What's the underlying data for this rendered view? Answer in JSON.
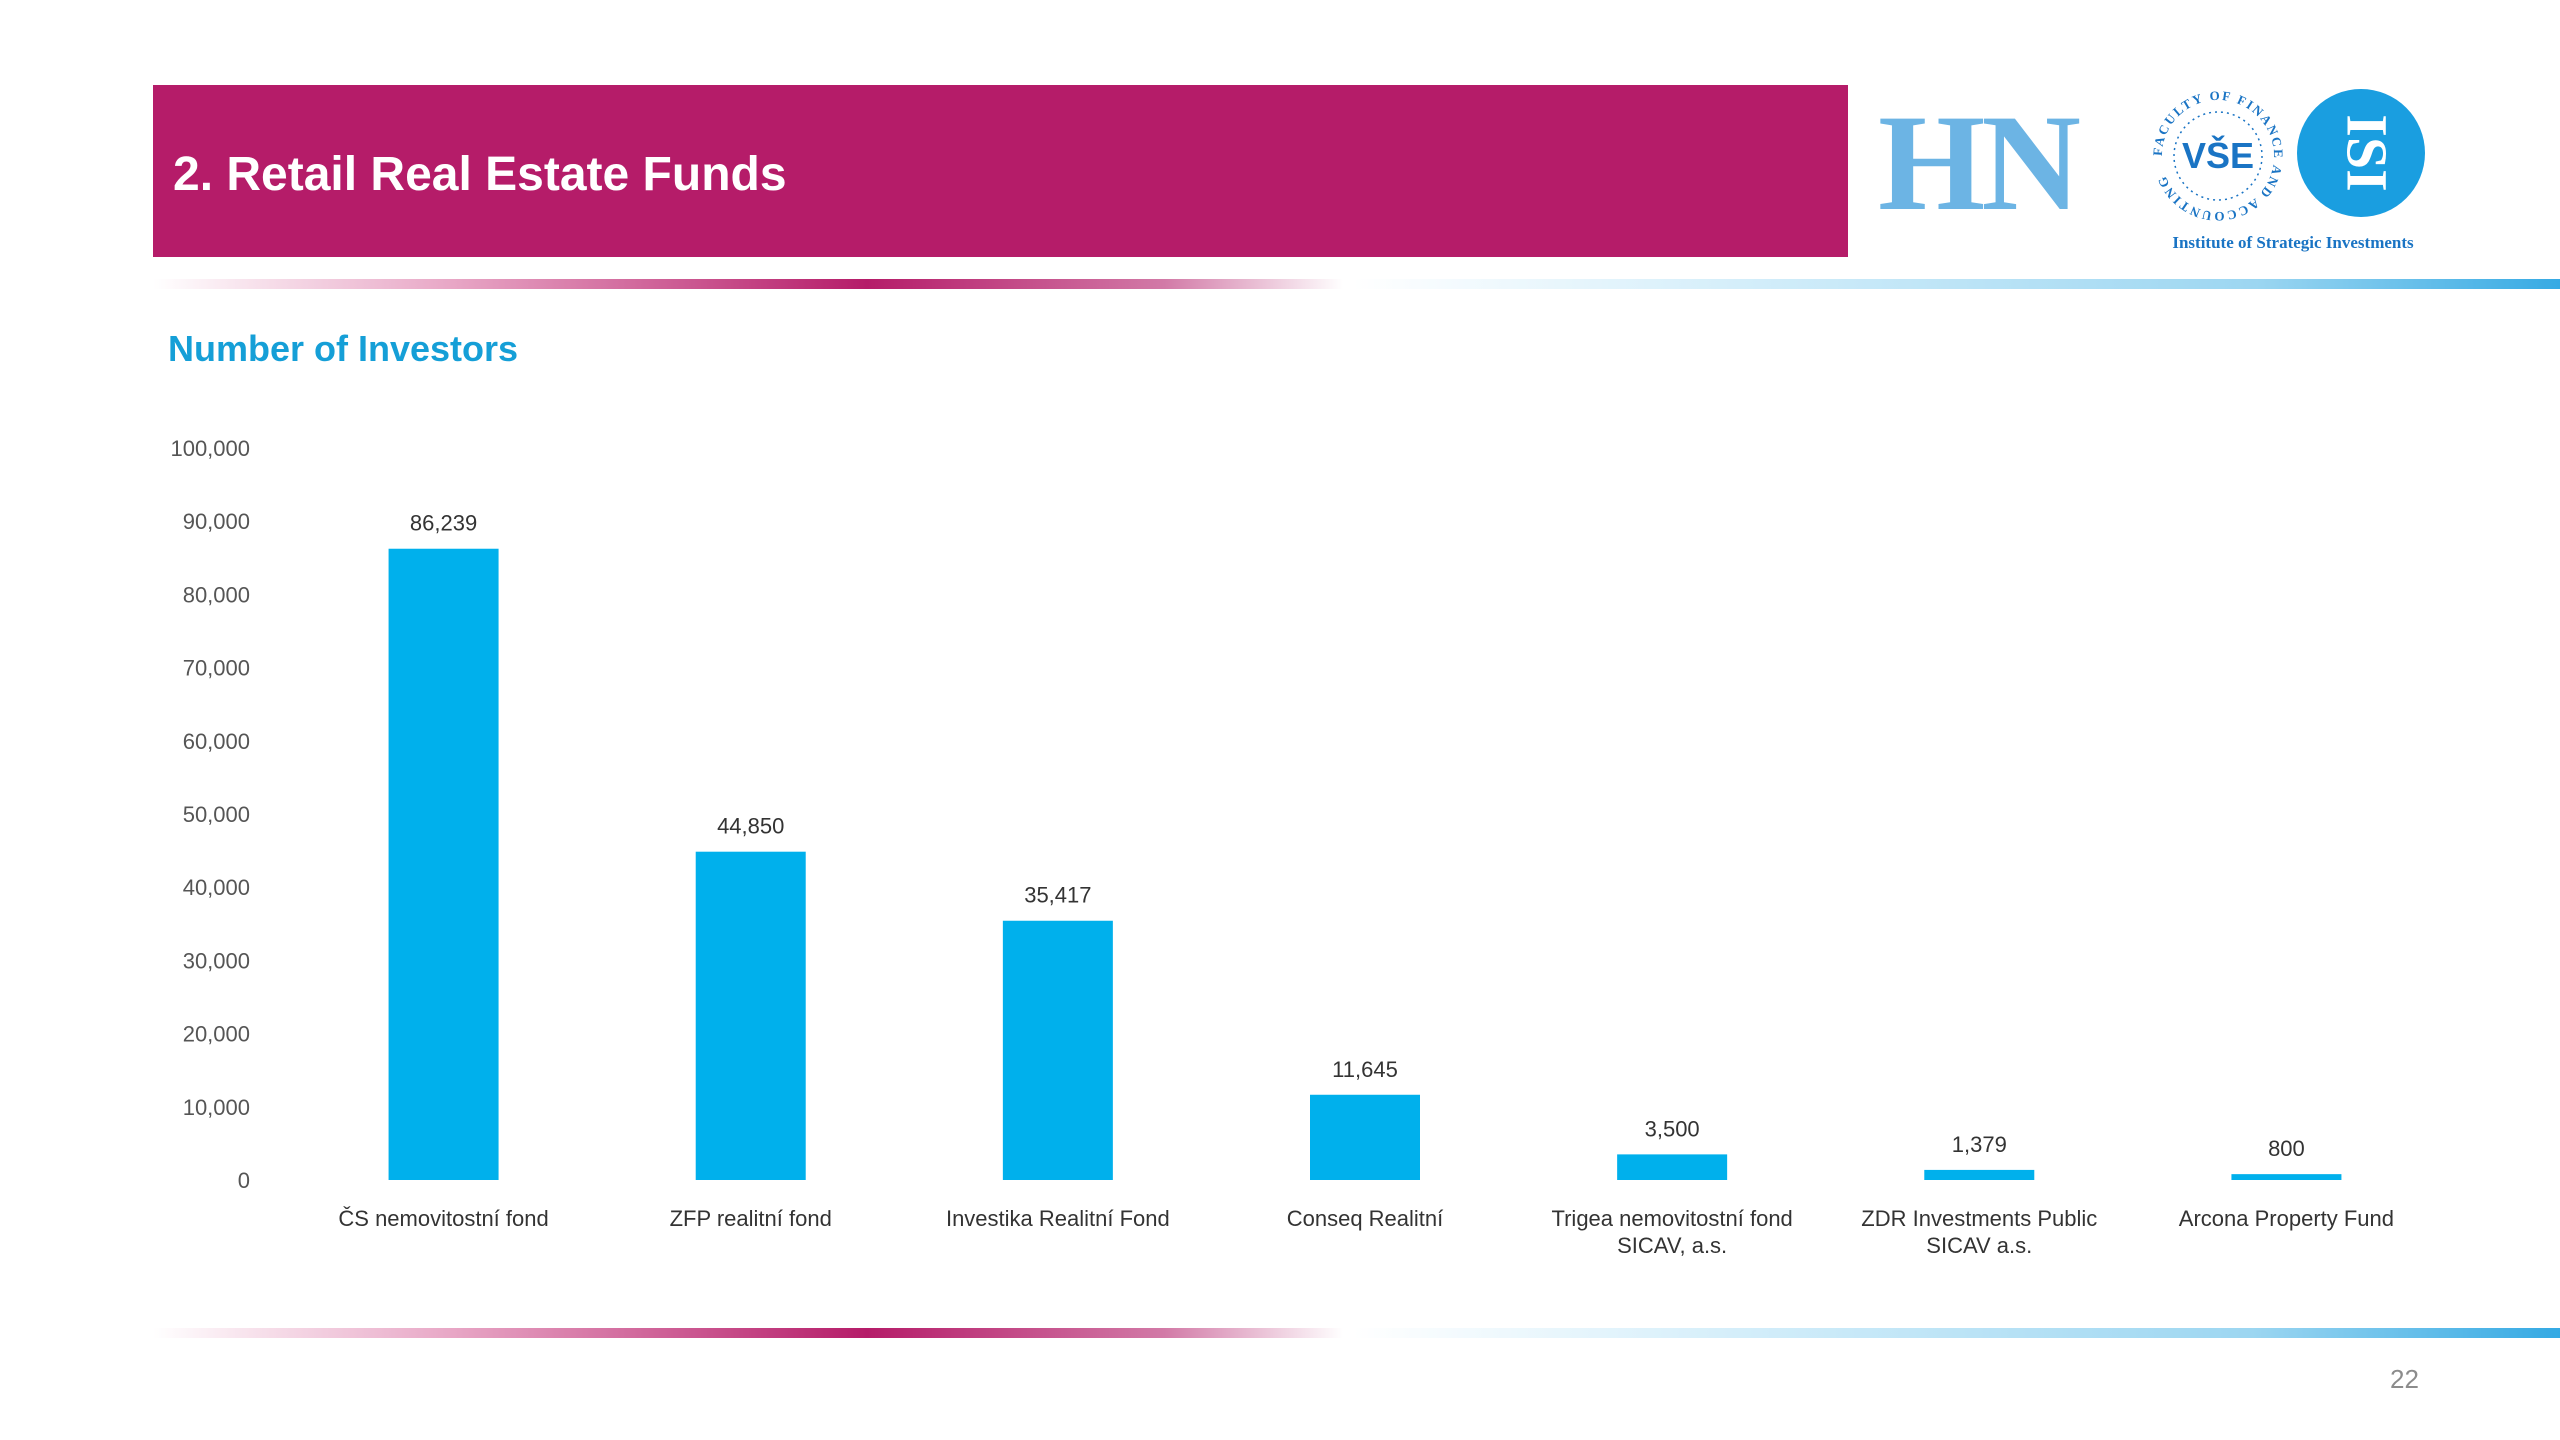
{
  "header": {
    "title": "2. Retail Real Estate Funds",
    "banner_color": "#b51c69"
  },
  "logos": {
    "hn": {
      "text": "HN",
      "color": "#6cb4e4"
    },
    "vse": {
      "mark": "VŠE",
      "ring_text": "FACULTY OF FINANCE AND ACCOUNTING",
      "color": "#1a74c4"
    },
    "isi": {
      "mark": "ISI",
      "color": "#1a9ee0"
    },
    "institute_name": "Institute of Strategic Investments"
  },
  "chart_data": {
    "type": "bar",
    "title": "Number of Investors",
    "categories": [
      "ČS nemovitostní fond",
      "ZFP realitní fond",
      "Investika Realitní Fond",
      "Conseq Realitní",
      "Trigea nemovitostní fond SICAV, a.s.",
      "ZDR Investments Public SICAV a.s.",
      "Arcona Property Fund"
    ],
    "category_lines": [
      [
        "ČS nemovitostní fond"
      ],
      [
        "ZFP realitní fond"
      ],
      [
        "Investika Realitní Fond"
      ],
      [
        "Conseq Realitní"
      ],
      [
        "Trigea nemovitostní fond",
        "SICAV, a.s."
      ],
      [
        "ZDR Investments Public",
        "SICAV a.s."
      ],
      [
        "Arcona Property Fund"
      ]
    ],
    "values": [
      86239,
      44850,
      35417,
      11645,
      3500,
      1379,
      800
    ],
    "value_labels": [
      "86,239",
      "44,850",
      "35,417",
      "11,645",
      "3,500",
      "1,379",
      "800"
    ],
    "ylim": [
      0,
      100000
    ],
    "yticks": [
      0,
      10000,
      20000,
      30000,
      40000,
      50000,
      60000,
      70000,
      80000,
      90000,
      100000
    ],
    "ytick_labels": [
      "0",
      "10,000",
      "20,000",
      "30,000",
      "40,000",
      "50,000",
      "60,000",
      "70,000",
      "80,000",
      "90,000",
      "100,000"
    ],
    "grid": false,
    "legend": "none",
    "bar_color": "#00b0ec"
  },
  "footer": {
    "page_number": "22"
  }
}
